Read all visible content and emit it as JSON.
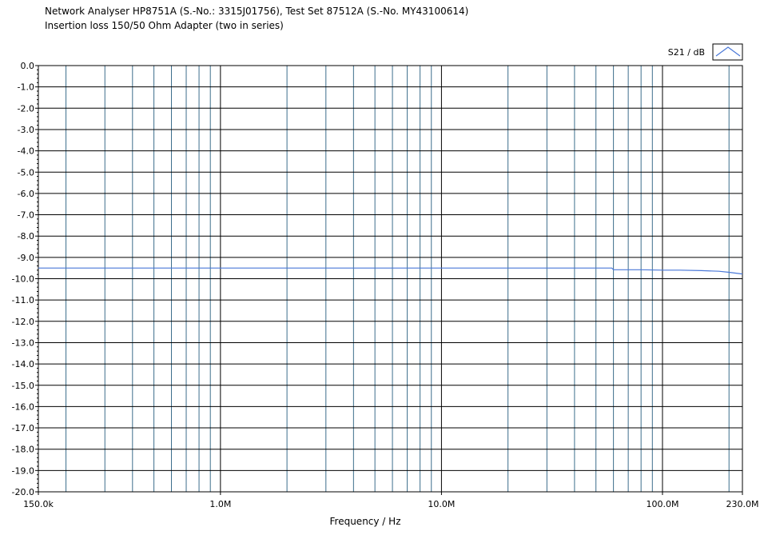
{
  "chart_data": {
    "type": "line",
    "title": "Network Analyser HP8751A (S.-No.: 3315J01756), Test Set 87512A (S.-No. MY43100614)",
    "subtitle": "Insertion loss 150/50 Ohm Adapter (two in series)",
    "xlabel": "Frequency / Hz",
    "ylabel": "",
    "x_scale": "log",
    "xlim": [
      150000,
      230000000
    ],
    "ylim": [
      -20,
      0
    ],
    "x_tick_labels": [
      {
        "value": 150000,
        "label": "150.0k"
      },
      {
        "value": 1000000,
        "label": "1.0M"
      },
      {
        "value": 10000000,
        "label": "10.0M"
      },
      {
        "value": 100000000,
        "label": "100.0M"
      },
      {
        "value": 230000000,
        "label": "230.0M"
      }
    ],
    "y_ticks": [
      0,
      -1,
      -2,
      -3,
      -4,
      -5,
      -6,
      -7,
      -8,
      -9,
      -10,
      -11,
      -12,
      -13,
      -14,
      -15,
      -16,
      -17,
      -18,
      -19,
      -20
    ],
    "y_tick_labels": [
      "0.0",
      "-1.0",
      "-2.0",
      "-3.0",
      "-4.0",
      "-5.0",
      "-6.0",
      "-7.0",
      "-8.0",
      "-9.0",
      "-10.0",
      "-11.0",
      "-12.0",
      "-13.0",
      "-14.0",
      "-15.0",
      "-16.0",
      "-17.0",
      "-18.0",
      "-19.0",
      "-20.0"
    ],
    "grid": true,
    "legend_position": "top-right",
    "series": [
      {
        "name": "S21 / dB",
        "color": "#4a78d8",
        "x": [
          150000,
          1000000,
          10000000,
          30000000,
          59000000,
          60000000,
          80000000,
          100000000,
          120000000,
          150000000,
          180000000,
          200000000,
          230000000
        ],
        "y": [
          -9.5,
          -9.5,
          -9.5,
          -9.5,
          -9.5,
          -9.58,
          -9.58,
          -9.6,
          -9.6,
          -9.62,
          -9.65,
          -9.7,
          -9.78
        ]
      }
    ]
  },
  "colors": {
    "grid_major": "#000000",
    "grid_minor": "#3d6e8c",
    "axis": "#000000"
  },
  "legend": {
    "label": "S21 / dB",
    "icon": "line-sample-icon"
  }
}
